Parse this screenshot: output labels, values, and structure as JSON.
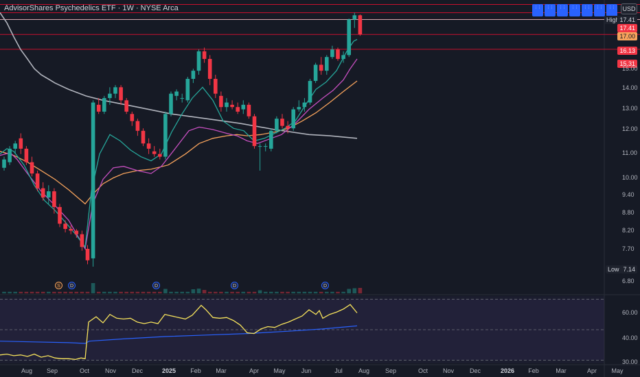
{
  "header": {
    "title": "AdvisorShares Psychedelics ETF · 1W · NYSE Arca",
    "currency": "USD",
    "toolbar_icons": [
      "1",
      "2",
      "3",
      "4",
      "5",
      "6",
      "7",
      "8"
    ]
  },
  "price_axis": {
    "ticks": [
      "15.00",
      "14.00",
      "13.00",
      "12.00",
      "11.00",
      "10.00",
      "9.40",
      "8.80",
      "8.20",
      "7.70",
      "6.80"
    ]
  },
  "price_tags": {
    "high_label": "High",
    "high_value": "17.41",
    "last_value": "17.00",
    "level1": "16.13",
    "level2": "15.31",
    "low_label": "Low",
    "low_value": "7.14"
  },
  "colors": {
    "up": "#26a69a",
    "down": "#f23645",
    "sma_long": "#b2b5be",
    "ema_orange": "#f7a35c",
    "ema_purple": "#c74fc0",
    "ema_green": "#26a69a",
    "rsi": "#f7e35c",
    "rsi_ma": "#2962ff",
    "hline": "#c8102e"
  },
  "time_axis": {
    "labels": [
      "Aug",
      "Sep",
      "Oct",
      "Nov",
      "Dec",
      "2025",
      "Feb",
      "Mar",
      "Apr",
      "May",
      "Jun",
      "Jul",
      "Aug",
      "Sep",
      "Oct",
      "Nov",
      "Dec",
      "2026",
      "Feb",
      "Mar",
      "Apr",
      "May"
    ]
  },
  "events": [
    {
      "letter": "S"
    },
    {
      "letter": "D"
    },
    {
      "letter": "D"
    },
    {
      "letter": "D"
    },
    {
      "letter": "D"
    }
  ],
  "rsi_axis": {
    "ticks": [
      "60.00",
      "40.00",
      "30.00"
    ]
  },
  "chart_data": {
    "type": "candlestick",
    "title": "AdvisorShares Psychedelics ETF · 1W · NYSE Arca",
    "candles": [
      [
        10.1,
        10.5,
        10.0,
        10.4
      ],
      [
        10.3,
        10.9,
        10.2,
        10.8
      ],
      [
        10.8,
        11.1,
        10.6,
        11.0
      ],
      [
        11.2,
        11.4,
        10.6,
        10.8
      ],
      [
        10.8,
        10.9,
        10.2,
        10.3
      ],
      [
        10.3,
        10.5,
        9.8,
        9.9
      ],
      [
        9.9,
        10.0,
        9.3,
        9.4
      ],
      [
        9.4,
        9.6,
        9.0,
        9.1
      ],
      [
        9.1,
        9.5,
        8.9,
        9.3
      ],
      [
        9.3,
        9.4,
        8.6,
        8.8
      ],
      [
        8.8,
        8.9,
        8.2,
        8.3
      ],
      [
        8.3,
        8.4,
        8.05,
        8.15
      ],
      [
        8.15,
        8.25,
        8.0,
        8.1
      ],
      [
        8.1,
        8.15,
        7.9,
        8.0
      ],
      [
        8.0,
        8.1,
        7.55,
        7.65
      ],
      [
        7.6,
        7.7,
        7.2,
        7.3
      ],
      [
        7.35,
        12.8,
        7.14,
        12.7
      ],
      [
        12.6,
        12.9,
        12.2,
        12.3
      ],
      [
        12.3,
        13.0,
        12.2,
        12.9
      ],
      [
        12.9,
        13.4,
        12.6,
        13.1
      ],
      [
        13.1,
        13.5,
        12.9,
        13.4
      ],
      [
        13.4,
        13.5,
        12.6,
        12.8
      ],
      [
        12.8,
        12.9,
        12.2,
        12.3
      ],
      [
        12.2,
        12.3,
        11.7,
        11.9
      ],
      [
        11.9,
        12.0,
        11.3,
        11.5
      ],
      [
        11.5,
        11.6,
        10.9,
        11.0
      ],
      [
        11.0,
        11.2,
        10.6,
        10.8
      ],
      [
        10.7,
        10.9,
        10.5,
        10.6
      ],
      [
        10.6,
        10.8,
        10.4,
        10.5
      ],
      [
        10.5,
        12.3,
        10.4,
        12.2
      ],
      [
        12.2,
        13.2,
        12.1,
        13.1
      ],
      [
        13.0,
        13.3,
        12.8,
        13.2
      ],
      [
        12.9,
        13.1,
        12.7,
        12.9
      ],
      [
        12.8,
        13.9,
        12.7,
        13.8
      ],
      [
        13.8,
        14.3,
        13.6,
        14.2
      ],
      [
        14.2,
        15.3,
        14.0,
        15.2
      ],
      [
        15.2,
        15.4,
        14.6,
        14.8
      ],
      [
        14.8,
        15.0,
        13.5,
        13.8
      ],
      [
        13.8,
        14.0,
        12.9,
        13.1
      ],
      [
        13.0,
        13.2,
        12.3,
        12.5
      ],
      [
        12.5,
        12.9,
        12.3,
        12.7
      ],
      [
        12.6,
        12.8,
        12.4,
        12.5
      ],
      [
        12.5,
        12.7,
        12.2,
        12.3
      ],
      [
        12.4,
        12.8,
        12.2,
        12.6
      ],
      [
        12.6,
        12.7,
        12.0,
        12.1
      ],
      [
        12.1,
        12.2,
        10.8,
        10.9
      ],
      [
        10.9,
        11.0,
        10.0,
        10.9
      ],
      [
        10.9,
        11.0,
        10.7,
        10.9
      ],
      [
        10.8,
        11.6,
        10.7,
        11.5
      ],
      [
        11.5,
        12.1,
        11.4,
        12.0
      ],
      [
        12.0,
        12.2,
        11.6,
        11.7
      ],
      [
        11.7,
        11.9,
        11.4,
        11.6
      ],
      [
        11.6,
        12.5,
        11.5,
        12.4
      ],
      [
        12.4,
        12.8,
        12.3,
        12.5
      ],
      [
        12.5,
        12.9,
        12.3,
        12.7
      ],
      [
        12.7,
        13.8,
        12.6,
        13.7
      ],
      [
        13.7,
        14.6,
        13.6,
        14.5
      ],
      [
        14.5,
        14.9,
        14.0,
        14.2
      ],
      [
        14.2,
        15.0,
        14.0,
        14.9
      ],
      [
        14.9,
        15.5,
        14.8,
        15.3
      ],
      [
        15.3,
        15.4,
        14.7,
        14.8
      ],
      [
        14.8,
        15.2,
        14.6,
        15.0
      ],
      [
        15.0,
        17.05,
        14.9,
        17.0
      ],
      [
        17.0,
        17.41,
        16.5,
        17.25
      ],
      [
        17.25,
        17.3,
        16.05,
        16.13
      ]
    ],
    "sma_long": [
      [
        0,
        17.41
      ],
      [
        10,
        16.8
      ],
      [
        20,
        16.0
      ],
      [
        30,
        15.3
      ],
      [
        40,
        14.8
      ],
      [
        50,
        14.3
      ],
      [
        60,
        14.0
      ],
      [
        70,
        13.8
      ],
      [
        80,
        13.6
      ],
      [
        100,
        13.3
      ],
      [
        125,
        13.0
      ],
      [
        150,
        12.8
      ],
      [
        200,
        12.5
      ],
      [
        250,
        12.2
      ],
      [
        300,
        12.0
      ],
      [
        350,
        11.8
      ],
      [
        400,
        11.55
      ],
      [
        450,
        11.35
      ],
      [
        480,
        11.3
      ],
      [
        520,
        11.2
      ]
    ],
    "ema_orange": [
      [
        0,
        10.7
      ],
      [
        20,
        10.55
      ],
      [
        40,
        10.3
      ],
      [
        60,
        10.0
      ],
      [
        80,
        9.7
      ],
      [
        100,
        9.35
      ],
      [
        124,
        8.9
      ],
      [
        135,
        9.2
      ],
      [
        150,
        9.55
      ],
      [
        165,
        9.75
      ],
      [
        180,
        9.9
      ],
      [
        200,
        10.0
      ],
      [
        220,
        10.05
      ],
      [
        245,
        10.2
      ],
      [
        270,
        10.6
      ],
      [
        290,
        11.0
      ],
      [
        310,
        11.2
      ],
      [
        330,
        11.3
      ],
      [
        345,
        11.35
      ],
      [
        360,
        11.3
      ],
      [
        380,
        11.35
      ],
      [
        400,
        11.45
      ],
      [
        420,
        11.6
      ],
      [
        440,
        11.9
      ],
      [
        460,
        12.25
      ],
      [
        480,
        12.7
      ],
      [
        500,
        13.2
      ],
      [
        520,
        13.7
      ]
    ],
    "ema_purple": [
      [
        0,
        10.55
      ],
      [
        15,
        10.65
      ],
      [
        25,
        10.4
      ],
      [
        40,
        9.9
      ],
      [
        60,
        9.3
      ],
      [
        80,
        8.85
      ],
      [
        100,
        8.4
      ],
      [
        124,
        7.6
      ],
      [
        135,
        8.9
      ],
      [
        150,
        9.7
      ],
      [
        165,
        10.1
      ],
      [
        180,
        10.15
      ],
      [
        200,
        10.0
      ],
      [
        220,
        9.9
      ],
      [
        235,
        10.15
      ],
      [
        255,
        10.8
      ],
      [
        275,
        11.5
      ],
      [
        290,
        11.65
      ],
      [
        310,
        11.55
      ],
      [
        330,
        11.4
      ],
      [
        345,
        11.3
      ],
      [
        360,
        11.1
      ],
      [
        375,
        11.0
      ],
      [
        390,
        11.15
      ],
      [
        410,
        11.35
      ],
      [
        430,
        11.8
      ],
      [
        450,
        12.4
      ],
      [
        470,
        12.9
      ],
      [
        485,
        13.25
      ],
      [
        500,
        13.75
      ],
      [
        510,
        14.3
      ],
      [
        520,
        14.8
      ]
    ],
    "ema_green": [
      [
        0,
        10.6
      ],
      [
        10,
        10.8
      ],
      [
        20,
        10.7
      ],
      [
        35,
        10.2
      ],
      [
        50,
        9.5
      ],
      [
        65,
        9.0
      ],
      [
        80,
        8.7
      ],
      [
        95,
        8.35
      ],
      [
        110,
        8.0
      ],
      [
        124,
        7.65
      ],
      [
        133,
        9.3
      ],
      [
        145,
        10.6
      ],
      [
        160,
        11.35
      ],
      [
        175,
        11.1
      ],
      [
        190,
        10.75
      ],
      [
        205,
        10.5
      ],
      [
        220,
        10.35
      ],
      [
        235,
        10.6
      ],
      [
        250,
        11.45
      ],
      [
        265,
        12.2
      ],
      [
        280,
        12.9
      ],
      [
        295,
        13.4
      ],
      [
        310,
        12.8
      ],
      [
        325,
        11.9
      ],
      [
        340,
        11.6
      ],
      [
        355,
        11.5
      ],
      [
        370,
        11.1
      ],
      [
        385,
        11.2
      ],
      [
        400,
        11.4
      ],
      [
        415,
        11.6
      ],
      [
        430,
        11.9
      ],
      [
        445,
        12.6
      ],
      [
        460,
        13.3
      ],
      [
        475,
        13.65
      ],
      [
        490,
        14.2
      ],
      [
        505,
        15.2
      ],
      [
        515,
        15.75
      ],
      [
        520,
        15.85
      ]
    ],
    "volume": [
      {
        "i": 16,
        "v": 3.0
      },
      {
        "i": 29,
        "v": 1.3
      },
      {
        "i": 34,
        "v": 1.2
      },
      {
        "i": 35,
        "v": 1.4
      },
      {
        "i": 36,
        "v": 1.0
      },
      {
        "i": 46,
        "v": 0.9
      },
      {
        "i": 62,
        "v": 1.3
      },
      {
        "i": 63,
        "v": 1.5
      },
      {
        "i": 64,
        "v": 1.6
      }
    ],
    "rsi": [
      [
        0,
        33.5
      ],
      [
        10,
        34
      ],
      [
        20,
        33
      ],
      [
        30,
        33.5
      ],
      [
        40,
        32.5
      ],
      [
        50,
        34
      ],
      [
        60,
        32
      ],
      [
        70,
        33
      ],
      [
        80,
        31.5
      ],
      [
        90,
        31
      ],
      [
        100,
        31
      ],
      [
        110,
        30.5
      ],
      [
        118,
        31.5
      ],
      [
        124,
        31
      ],
      [
        129,
        55
      ],
      [
        140,
        58.5
      ],
      [
        150,
        54.5
      ],
      [
        160,
        60
      ],
      [
        170,
        57.5
      ],
      [
        180,
        57
      ],
      [
        190,
        57.5
      ],
      [
        200,
        55
      ],
      [
        210,
        54
      ],
      [
        220,
        55
      ],
      [
        230,
        54
      ],
      [
        240,
        60
      ],
      [
        250,
        59
      ],
      [
        260,
        58
      ],
      [
        270,
        57
      ],
      [
        280,
        59.5
      ],
      [
        293,
        66
      ],
      [
        300,
        63
      ],
      [
        310,
        58
      ],
      [
        320,
        57.5
      ],
      [
        330,
        58
      ],
      [
        340,
        56
      ],
      [
        350,
        53
      ],
      [
        360,
        48
      ],
      [
        370,
        47.5
      ],
      [
        380,
        50.5
      ],
      [
        390,
        52
      ],
      [
        400,
        51.5
      ],
      [
        410,
        53.5
      ],
      [
        420,
        55
      ],
      [
        430,
        57
      ],
      [
        440,
        59
      ],
      [
        450,
        63
      ],
      [
        460,
        60
      ],
      [
        465,
        62.5
      ],
      [
        470,
        57.5
      ],
      [
        480,
        60
      ],
      [
        490,
        61.5
      ],
      [
        500,
        63.5
      ],
      [
        510,
        66.5
      ],
      [
        520,
        61
      ]
    ],
    "rsi_ma": [
      [
        0,
        42.5
      ],
      [
        50,
        42
      ],
      [
        100,
        41.5
      ],
      [
        124,
        41
      ],
      [
        130,
        42.5
      ],
      [
        180,
        44
      ],
      [
        240,
        45.5
      ],
      [
        300,
        46.5
      ],
      [
        360,
        47.5
      ],
      [
        420,
        49
      ],
      [
        470,
        50.5
      ],
      [
        520,
        52.5
      ]
    ],
    "price_range": [
      6.5,
      18.2
    ],
    "rsi_range": [
      28,
      72
    ],
    "rsi_levels": [
      70,
      50,
      30
    ]
  }
}
